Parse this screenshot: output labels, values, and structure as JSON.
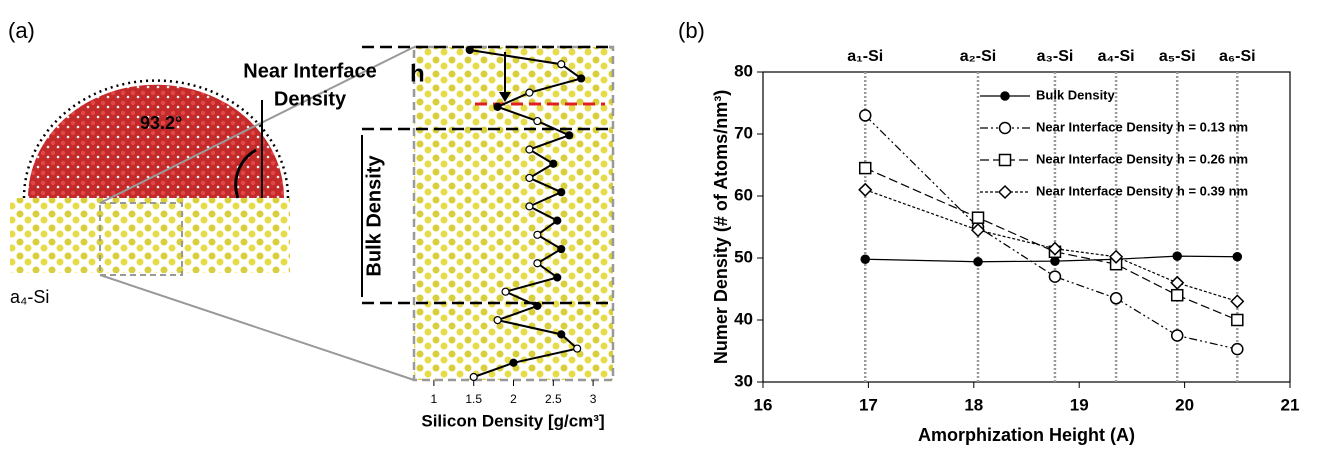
{
  "panel_a": {
    "label": "(a)",
    "near_interface": [
      "Near Interface",
      "Density"
    ],
    "angle": "93.2°",
    "h": "h",
    "bulk": "Bulk Density",
    "surface": "a₄-Si"
  },
  "chart_data": [
    {
      "type": "profile",
      "xlabel": "Silicon Density [g/cm³]",
      "xlim": [
        0.75,
        3.25
      ],
      "xticks": [
        1,
        1.5,
        2,
        2.5,
        3
      ],
      "color": "#000000",
      "values": [
        1.45,
        2.6,
        2.85,
        2.2,
        1.8,
        2.3,
        2.7,
        2.2,
        2.5,
        2.2,
        2.6,
        2.2,
        2.55,
        2.3,
        2.6,
        2.3,
        2.55,
        1.9,
        2.3,
        1.8,
        2.6,
        2.8,
        2.0,
        1.5
      ]
    },
    {
      "type": "line",
      "label": "(b)",
      "xlabel": "Amorphization Height (A)",
      "ylabel": "Numer Density (# of Atoms/nm³)",
      "xlim": [
        16,
        21
      ],
      "xticks": [
        16,
        17,
        18,
        19,
        20,
        21
      ],
      "ylim": [
        30,
        80
      ],
      "yticks": [
        30,
        40,
        50,
        60,
        70,
        80
      ],
      "x": [
        16.97,
        18.04,
        18.77,
        19.35,
        19.93,
        20.5
      ],
      "point_labels": [
        "a₁-Si",
        "a₂-Si",
        "a₃-Si",
        "a₄-Si",
        "a₅-Si",
        "a₆-Si"
      ],
      "series": [
        {
          "name": "Bulk Density",
          "color": "#000000",
          "marker": "filled-circle",
          "dash": "none",
          "values": [
            49.8,
            49.4,
            49.5,
            49.8,
            50.3,
            50.2
          ]
        },
        {
          "name": "Near Interface Density h = 0.13 nm",
          "color": "#000000",
          "marker": "circle",
          "dash": "8 3 2 3 2 3",
          "values": [
            73,
            55,
            47,
            43.5,
            37.5,
            35.3
          ]
        },
        {
          "name": "Near Interface Density h = 0.26 nm",
          "color": "#000000",
          "marker": "square",
          "dash": "9 4",
          "values": [
            64.5,
            56.5,
            51,
            49,
            44,
            40
          ]
        },
        {
          "name": "Near Interface Density h = 0.39 nm",
          "color": "#000000",
          "marker": "diamond",
          "dash": "3 2",
          "values": [
            61,
            54.5,
            51.5,
            50.2,
            46,
            43
          ]
        }
      ]
    }
  ]
}
